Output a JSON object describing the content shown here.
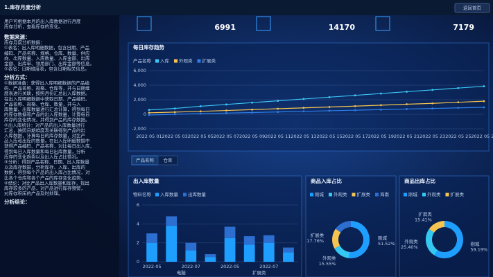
{
  "header": {
    "title": "1.库存月度分析",
    "button": "返回首页"
  },
  "intro": [
    "用户可根据本月的出入库数据进行月度",
    "库存分析，查看库存的变化。"
  ],
  "sections": [
    {
      "heading": "数据来源：",
      "lines": [
        "库存月度分析数据：",
        "①表名：出入库明细数据，包含日期、产品",
        "编码、产品名称、规格、仓库、数量、供应",
        "商、出库数量、入库数量、入库金额、出库",
        "金额、出库单、领用部门、出库金额等信息。",
        "②表名：日期维度表，包含日期相关信息。"
      ]
    },
    {
      "heading": "分析方式：",
      "lines": [
        "①数据准备：获得出入库明细数据的产品编",
        "码、产品名称、规格、仓库等，并与日期维",
        "度表进行关联，按照月份汇总出入库数据。",
        "在出入库明细数据中获取日期、产品编码、",
        "产品名称、规格、仓库、数量，并与入",
        "库数量、出库数量进行汇总计算，得到每日",
        "的库存数据和产品的出入库数量，计算每日",
        "库存的变化情况，并得到产品的库存数据。",
        "②出入库统计：对产品的出入库数量进行",
        "汇总，按照日期维度表关联得到产品的出",
        "入库数据，计算每日的库存数量，对比产",
        "品入库和出库的数量。在出入库明细数据中",
        "获得产品编码、产品名称，对比每日出入库，",
        "得到每日入库数量和每日出库数量，分析",
        "库存的变化趋势以及出入库占比情况。",
        "③分析：得到产品名称、日期、出入库数量",
        "以及库存数据，分析库存、入库、出库的",
        "数据，得到每个产品的出入库占比情况，对",
        "比各个仓库和各个产品的库存变化趋势。",
        "④结论：对比产品出入库数量和库存，找出",
        "库存较多的产品，对产品进行库存预警，",
        "对库存积压的产品及时处理。"
      ]
    },
    {
      "heading": "分析结论：",
      "lines": []
    }
  ],
  "kpis": [
    "6991",
    "14170",
    "7179"
  ],
  "tabs": [
    "产品名称",
    "仓库"
  ],
  "chart_data": [
    {
      "type": "line",
      "title": "每日库存趋势",
      "legend_title": "产品名称",
      "categories": [
        "2022 05 01",
        "2022 05 03",
        "2022 05 05",
        "2022 05 07",
        "2022 05 09",
        "2022 05 11",
        "2022 05 13",
        "2022 05 15",
        "2022 05 17",
        "2022 05 19",
        "2022 05 21",
        "2022 05 23",
        "2022 05 25",
        "2022 05 27"
      ],
      "series": [
        {
          "name": "入库",
          "color": "#3cc6f5",
          "values": [
            600,
            800,
            1100,
            1350,
            1600,
            1850,
            2100,
            2350,
            2600,
            2850,
            3100,
            3350,
            3600,
            3850
          ]
        },
        {
          "name": "外观类",
          "color": "#f5c451",
          "values": [
            200,
            300,
            400,
            520,
            640,
            760,
            880,
            1000,
            1120,
            1250,
            1380,
            1500,
            1650,
            1800
          ]
        },
        {
          "name": "扩展类",
          "color": "#2f7ee8",
          "values": [
            -100,
            0,
            80,
            160,
            240,
            320,
            400,
            480,
            560,
            640,
            720,
            800,
            880,
            950
          ]
        }
      ],
      "ylim": [
        -2000,
        6000
      ],
      "yticks": [
        {
          "value": -2000,
          "label": "-2,000"
        },
        0,
        {
          "value": 2000,
          "label": "2,000"
        },
        {
          "value": 4000,
          "label": "4,000"
        },
        {
          "value": 6000,
          "label": "6,000"
        }
      ],
      "grid": true
    },
    {
      "type": "bar",
      "title": "出入库数量",
      "legend_title": "物料名称",
      "categories": [
        "2022-05",
        null,
        "2022-07",
        null,
        "2022-05",
        null,
        "2022-07",
        null
      ],
      "groups": [
        "电脑",
        "扩展类"
      ],
      "series": [
        {
          "name": "入库数量",
          "color": "#1e9fff",
          "values": [
            2.0,
            3.8,
            1.2,
            0.5,
            2.5,
            1.8,
            2.0,
            1.0
          ]
        },
        {
          "name": "出库数量",
          "color": "#2d6fd1",
          "values": [
            1.0,
            1.0,
            0.8,
            0.3,
            1.2,
            0.9,
            0.8,
            0.5
          ]
        }
      ],
      "ylim": [
        0,
        6
      ],
      "yticks": [
        0,
        2,
        4,
        6
      ],
      "grid": true
    },
    {
      "type": "pie",
      "title": "商品入库占比",
      "donut": true,
      "categories": [
        "刚城",
        "外观类",
        "扩展类",
        "海南"
      ],
      "values": [
        51.52,
        15.55,
        17.76,
        15.17
      ],
      "value_labels": [
        "51.52%",
        "15.55%",
        "17.76%",
        null
      ],
      "colors": [
        "#1e9fff",
        "#33c9f2",
        "#f5c451",
        "#2d6fd1"
      ]
    },
    {
      "type": "pie",
      "title": "商品出库占比",
      "donut": true,
      "categories": [
        "刚城",
        "外观类",
        "扩展类"
      ],
      "values": [
        59.19,
        25.4,
        15.41
      ],
      "value_labels": [
        "59.19%",
        "25.40%",
        "15.41%"
      ],
      "colors": [
        "#1e9fff",
        "#33c9f2",
        "#f5c451"
      ]
    }
  ]
}
